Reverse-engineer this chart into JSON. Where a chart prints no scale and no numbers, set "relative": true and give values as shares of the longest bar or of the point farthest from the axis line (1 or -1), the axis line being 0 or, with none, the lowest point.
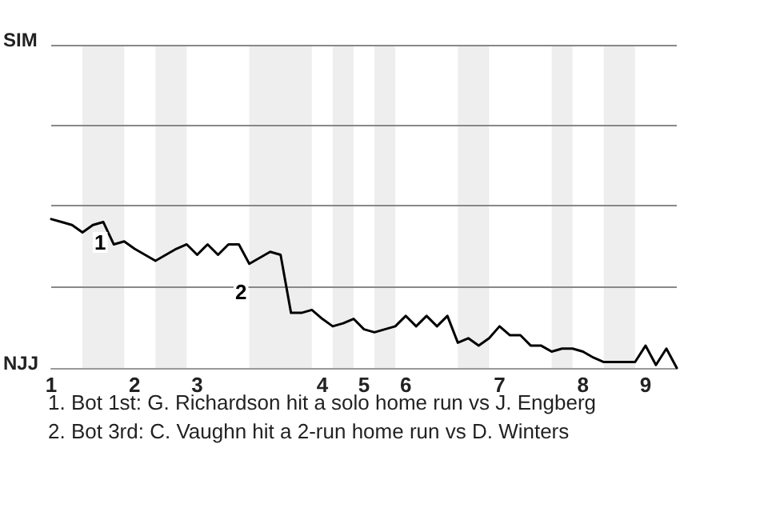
{
  "chart_data": {
    "type": "line",
    "relative": true,
    "categories": [
      "1",
      null,
      null,
      null,
      null,
      null,
      null,
      null,
      "2",
      null,
      null,
      null,
      null,
      null,
      "3",
      null,
      null,
      null,
      null,
      null,
      null,
      null,
      null,
      null,
      null,
      null,
      "4",
      null,
      null,
      null,
      "5",
      null,
      null,
      null,
      "6",
      null,
      null,
      null,
      null,
      null,
      null,
      null,
      null,
      "7",
      null,
      null,
      null,
      null,
      null,
      null,
      null,
      "8",
      null,
      null,
      null,
      null,
      null,
      "9",
      null,
      null,
      null
    ],
    "series": [
      {
        "color": "#000000",
        "values": [
          1,
          0.98,
          0.96,
          0.91,
          0.96,
          0.98,
          0.83,
          0.85,
          0.8,
          0.76,
          0.72,
          0.76,
          0.8,
          0.83,
          0.76,
          0.83,
          0.76,
          0.83,
          0.83,
          0.7,
          0.74,
          0.78,
          0.76,
          0.37,
          0.37,
          0.39,
          0.33,
          0.28,
          0.3,
          0.33,
          0.26,
          0.24,
          0.26,
          0.28,
          0.35,
          0.28,
          0.35,
          0.28,
          0.35,
          0.17,
          0.2,
          0.15,
          0.2,
          0.28,
          0.22,
          0.22,
          0.15,
          0.15,
          0.11,
          0.13,
          0.13,
          0.11,
          0.07,
          0.04,
          0.04,
          0.04,
          0.04,
          0.15,
          0.02,
          0.13,
          0
        ]
      }
    ],
    "marker": "none",
    "line_style": "solid",
    "ref_lines": [
      {
        "axis": "y",
        "value": 0.54,
        "color": "#888888"
      },
      {
        "axis": "y",
        "value": 1.09,
        "color": "#888888"
      },
      {
        "axis": "y",
        "value": 1.63,
        "color": "#888888"
      },
      {
        "axis": "y",
        "value": 2.17,
        "color": "#888888"
      }
    ],
    "annotations": [
      "SIM",
      "NJJ",
      "1",
      "2",
      "1. Bot 1st: G. Richardson hit a solo home run vs J. Engberg",
      "2. Bot 3rd: C. Vaughn hit a 2-run home run vs D. Winters"
    ]
  }
}
